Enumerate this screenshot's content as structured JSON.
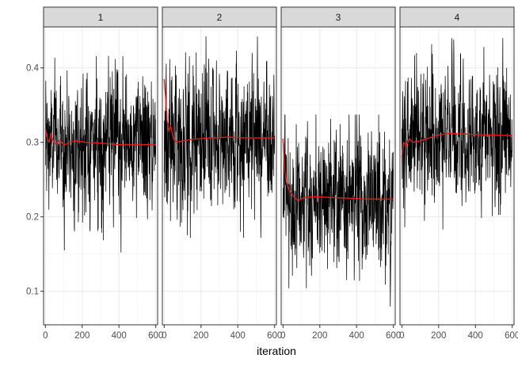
{
  "chart_data": {
    "type": "line",
    "layout": "facets-1x4",
    "xlabel": "iteration",
    "ylabel": "",
    "xlim": [
      -10,
      610
    ],
    "ylim": [
      0.055,
      0.455
    ],
    "x_ticks": [
      0,
      200,
      400,
      600
    ],
    "x_tick_labels": [
      "0",
      "200",
      "400",
      "600"
    ],
    "y_ticks": [
      0.1,
      0.2,
      0.3,
      0.4
    ],
    "y_tick_labels": [
      "0.1",
      "0.2",
      "0.3",
      "0.4"
    ],
    "grid": true,
    "legend": "none",
    "series_colors": {
      "samples": "#000000",
      "running_mean": "#e41a1c"
    },
    "panels": [
      {
        "label": "1",
        "n_iter": 600,
        "mean": 0.298,
        "sd": 0.045,
        "min": 0.128,
        "max": 0.432,
        "running_mean": [
          [
            0,
            0.318
          ],
          [
            10,
            0.305
          ],
          [
            20,
            0.3
          ],
          [
            30,
            0.312
          ],
          [
            45,
            0.3
          ],
          [
            60,
            0.298
          ],
          [
            80,
            0.303
          ],
          [
            100,
            0.296
          ],
          [
            130,
            0.3
          ],
          [
            170,
            0.302
          ],
          [
            220,
            0.3
          ],
          [
            300,
            0.299
          ],
          [
            400,
            0.297
          ],
          [
            500,
            0.297
          ],
          [
            600,
            0.297
          ]
        ]
      },
      {
        "label": "2",
        "n_iter": 600,
        "mean": 0.306,
        "sd": 0.05,
        "min": 0.172,
        "max": 0.442,
        "running_mean": [
          [
            0,
            0.385
          ],
          [
            8,
            0.36
          ],
          [
            15,
            0.33
          ],
          [
            25,
            0.315
          ],
          [
            35,
            0.322
          ],
          [
            50,
            0.305
          ],
          [
            70,
            0.3
          ],
          [
            100,
            0.302
          ],
          [
            150,
            0.304
          ],
          [
            250,
            0.306
          ],
          [
            350,
            0.307
          ],
          [
            450,
            0.306
          ],
          [
            600,
            0.306
          ]
        ]
      },
      {
        "label": "3",
        "n_iter": 600,
        "mean": 0.225,
        "sd": 0.048,
        "min": 0.075,
        "max": 0.337,
        "running_mean": [
          [
            0,
            0.305
          ],
          [
            10,
            0.26
          ],
          [
            20,
            0.245
          ],
          [
            35,
            0.235
          ],
          [
            55,
            0.228
          ],
          [
            80,
            0.222
          ],
          [
            120,
            0.226
          ],
          [
            180,
            0.227
          ],
          [
            250,
            0.226
          ],
          [
            350,
            0.225
          ],
          [
            450,
            0.224
          ],
          [
            600,
            0.224
          ]
        ]
      },
      {
        "label": "4",
        "n_iter": 600,
        "mean": 0.308,
        "sd": 0.046,
        "min": 0.148,
        "max": 0.44,
        "running_mean": [
          [
            0,
            0.28
          ],
          [
            10,
            0.3
          ],
          [
            25,
            0.295
          ],
          [
            40,
            0.305
          ],
          [
            60,
            0.3
          ],
          [
            100,
            0.302
          ],
          [
            150,
            0.306
          ],
          [
            200,
            0.31
          ],
          [
            260,
            0.312
          ],
          [
            350,
            0.311
          ],
          [
            450,
            0.31
          ],
          [
            600,
            0.309
          ]
        ]
      }
    ]
  }
}
